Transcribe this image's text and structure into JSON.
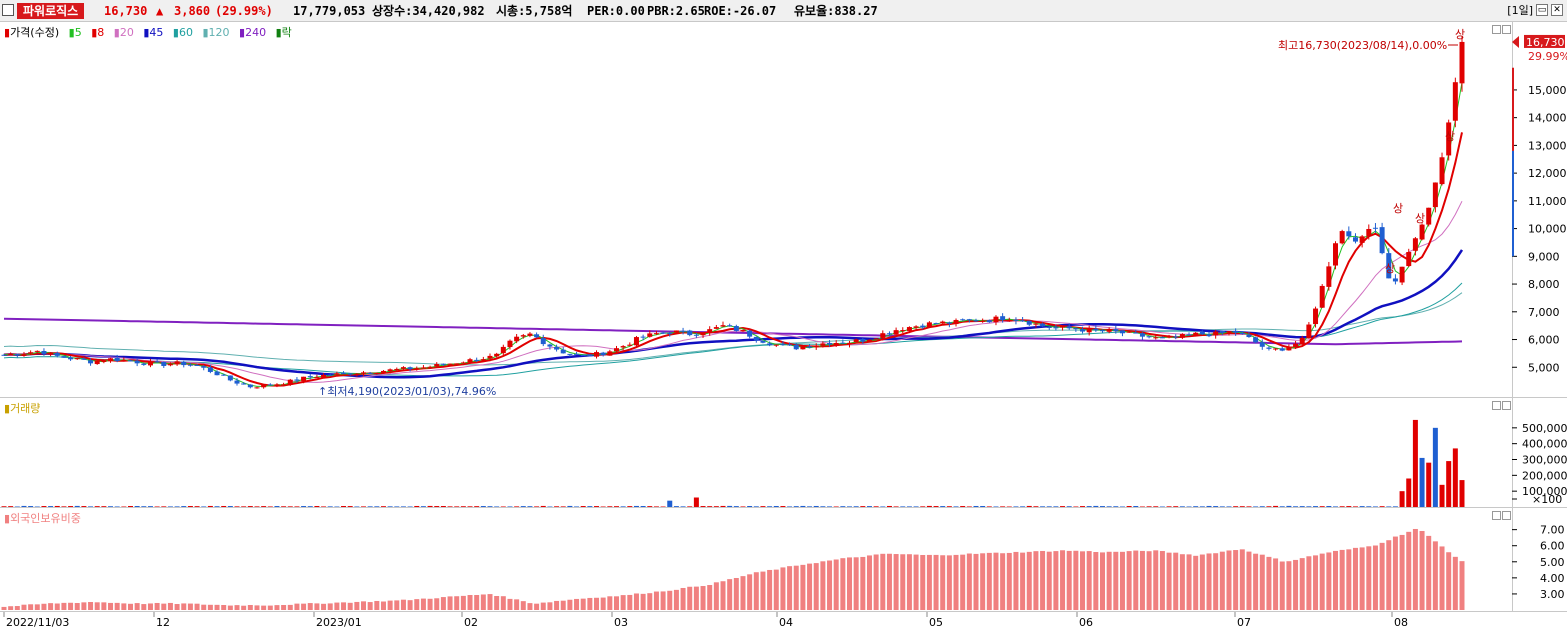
{
  "header": {
    "stock_name": "파워로직스",
    "price": "16,730",
    "change": "3,860",
    "change_pct": "(29.99%)",
    "volume": "17,779,053",
    "listed_shares": "상장수:34,420,982",
    "market_cap": "시총:5,758억",
    "per": "PER:0.00",
    "pbr": "PBR:2.65",
    "roe": "ROE:-26.07",
    "reserve": "유보율:838.27",
    "period": "[1일]",
    "up_arrow_icon": "up-arrow-icon"
  },
  "price_panel": {
    "legend": {
      "price": "가격(수정)",
      "ma5": "5",
      "ma8": "8",
      "ma20": "20",
      "ma45": "45",
      "ma60": "60",
      "ma120": "120",
      "ma240": "240",
      "rak": "락"
    },
    "high_label": "최고16,730(2023/08/14),0.00%",
    "low_label": "최저4,190(2023/01/03),74.96%",
    "last_price_tag": "16,730",
    "last_pct_tag": "29.99%",
    "limit_up_mark": "상",
    "y_ticks": [
      "15,000",
      "14,000",
      "13,000",
      "12,000",
      "11,000",
      "10,000",
      "9,000",
      "8,000",
      "7,000",
      "6,000",
      "5,000"
    ]
  },
  "volume_panel": {
    "title": "거래량",
    "y_ticks": [
      "500,000",
      "400,000",
      "300,000",
      "200,000",
      "100,000",
      "×100"
    ]
  },
  "foreign_panel": {
    "title": "외국인보유비중",
    "y_ticks": [
      "7.00",
      "6.00",
      "5.00",
      "4.00",
      "3.00"
    ]
  },
  "x_ticks": [
    "2022/11/03",
    "12",
    "2023/01",
    "02",
    "03",
    "04",
    "05",
    "06",
    "07",
    "08"
  ],
  "colors": {
    "up": "#e00000",
    "down": "#1f5fd1",
    "ma5": "#22c022",
    "ma8": "#e00000",
    "ma20": "#d070c0",
    "ma45": "#1010c0",
    "ma60": "#20a0a0",
    "ma120": "#60b0b0",
    "ma240": "#8020c0",
    "rak": "#108010",
    "foreign": "#f08080",
    "volume_legend": "#c8a000"
  },
  "chart_data": [
    {
      "type": "candlestick",
      "title": "",
      "series_name": "가격(수정)",
      "x_range": [
        "2022/11/03",
        "2023/08/14"
      ],
      "ylim": [
        4000,
        16800
      ],
      "key_points": [
        {
          "date": "2023/01/03",
          "low": 4190
        },
        {
          "date": "2023/08/14",
          "high": 16730,
          "close": 16730
        }
      ],
      "close_path": [
        5450,
        5500,
        5600,
        5400,
        5300,
        5200,
        5300,
        5250,
        5150,
        5100,
        5150,
        5050,
        4800,
        4500,
        4300,
        4350,
        4450,
        4600,
        4700,
        4750,
        4800,
        4850,
        4900,
        4950,
        5000,
        5100,
        5200,
        5300,
        5400,
        6000,
        6200,
        5800,
        5500,
        5400,
        5500,
        5700,
        6000,
        6200,
        6300,
        6200,
        6300,
        6500,
        6300,
        6000,
        5800,
        5700,
        5800,
        5900,
        5900,
        6000,
        6200,
        6400,
        6500,
        6600,
        6600,
        6700,
        6700,
        6800,
        6700,
        6500,
        6400,
        6400,
        6300,
        6300,
        6200,
        6100,
        6000,
        6100,
        6200,
        6200,
        6300,
        6000,
        5600,
        5700,
        6000,
        7800,
        10000,
        9500,
        10200,
        7800,
        9200,
        10500,
        12900,
        16730
      ]
    },
    {
      "type": "bar",
      "series_name": "거래량",
      "ylim": [
        0,
        600000
      ],
      "recent_values": [
        100000,
        180000,
        550000,
        310000,
        280000,
        500000,
        140000,
        290000,
        370000,
        170000
      ]
    },
    {
      "type": "bar",
      "series_name": "외국인보유비중",
      "ylim": [
        2.0,
        7.6
      ],
      "values_path": [
        2.2,
        2.4,
        2.5,
        2.4,
        2.4,
        2.3,
        2.3,
        2.4,
        2.5,
        2.6,
        2.8,
        3.0,
        2.4,
        2.7,
        2.9,
        3.2,
        3.6,
        4.3,
        4.8,
        5.2,
        5.5,
        5.4,
        5.5,
        5.6,
        5.7,
        5.6,
        5.7,
        5.4,
        5.8,
        5.0,
        5.6,
        6.0,
        7.1,
        5.0
      ]
    }
  ]
}
